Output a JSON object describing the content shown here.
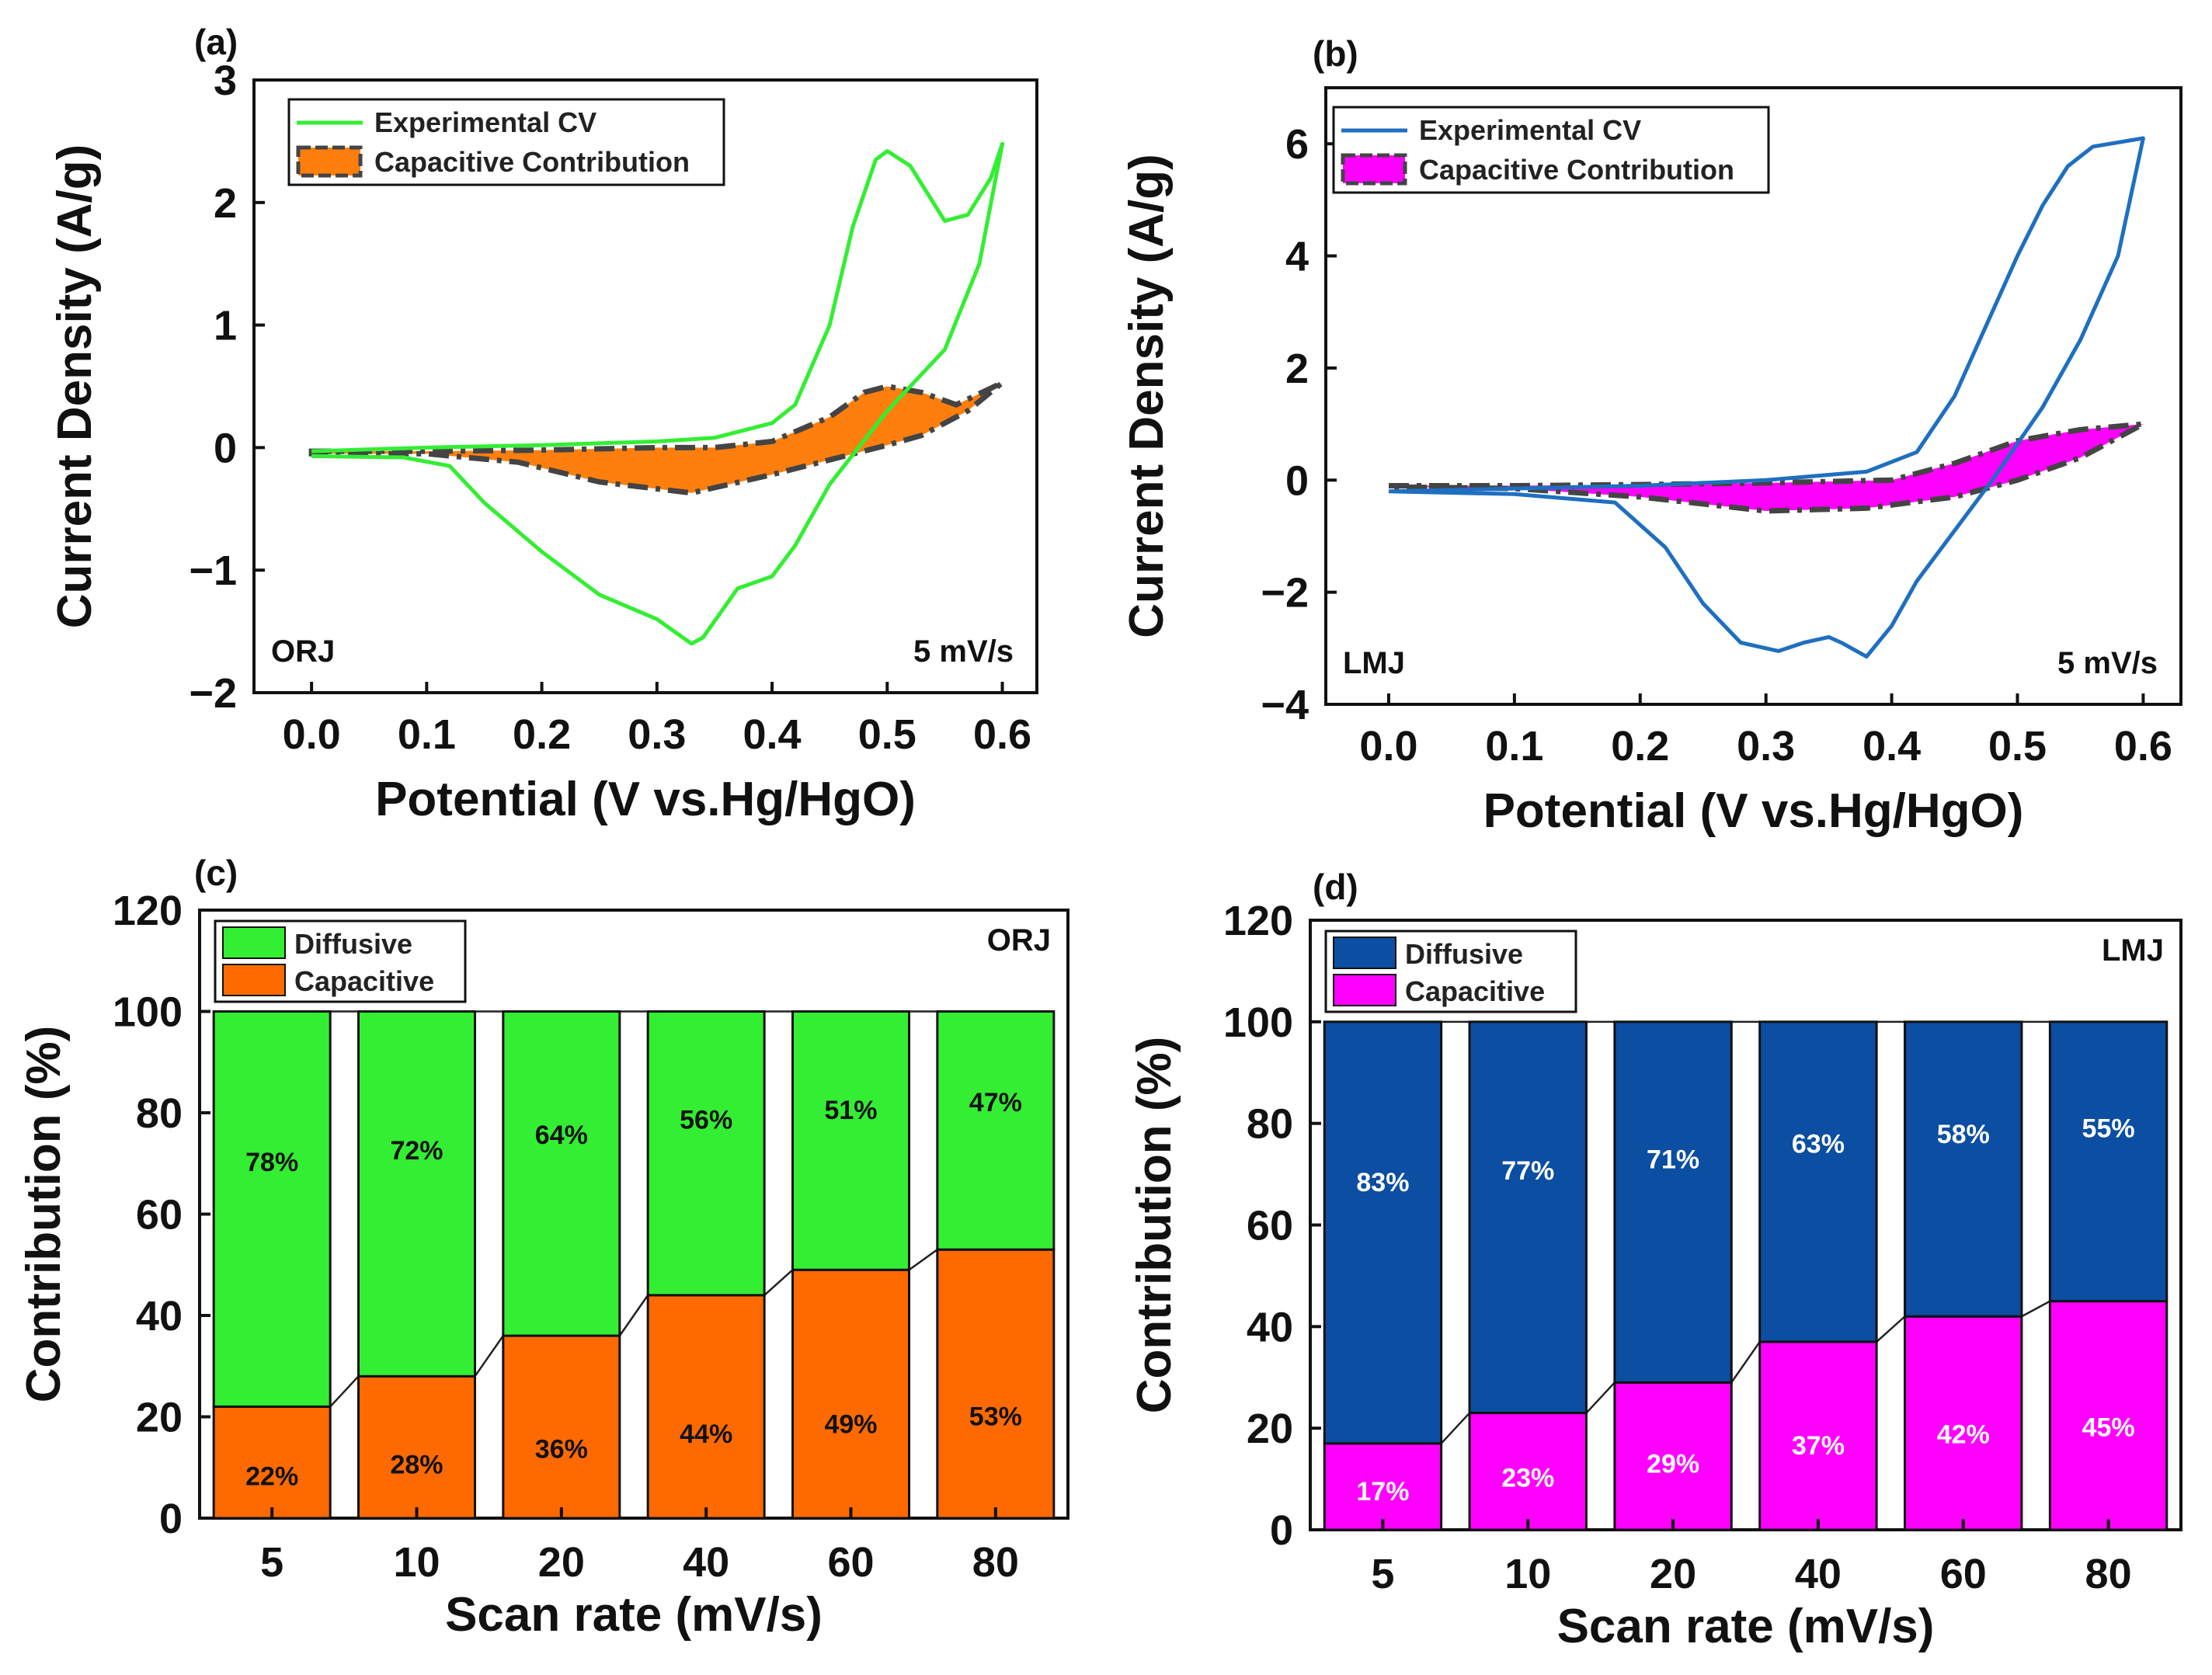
{
  "chart_data": [
    {
      "type": "line",
      "panel": "(a)",
      "sample": "ORJ",
      "annotation": "5 mV/s",
      "xlabel": "Potential (V vs.Hg/HgO)",
      "ylabel": "Current Density (A/g)",
      "xlim": [
        -0.05,
        0.63
      ],
      "ylim": [
        -2,
        3
      ],
      "xticks": [
        0.0,
        0.1,
        0.2,
        0.3,
        0.4,
        0.5,
        0.6
      ],
      "xtick_labels": [
        "0.0",
        "0.1",
        "0.2",
        "0.3",
        "0.4",
        "0.5",
        "0.6"
      ],
      "yticks": [
        -2,
        -1,
        0,
        1,
        2,
        3
      ],
      "ytick_labels": [
        "−2",
        "−1",
        "0",
        "1",
        "2",
        "3"
      ],
      "legend": [
        "Experimental CV",
        "Capacitive Contribution"
      ],
      "colors": {
        "cv": "#33ee33",
        "fill": "#ff7f0e",
        "outline": "#444444"
      },
      "series": [
        {
          "name": "Experimental CV",
          "anodic": [
            [
              0.0,
              -0.03
            ],
            [
              0.1,
              0.0
            ],
            [
              0.2,
              0.02
            ],
            [
              0.3,
              0.05
            ],
            [
              0.35,
              0.08
            ],
            [
              0.4,
              0.2
            ],
            [
              0.42,
              0.35
            ],
            [
              0.45,
              1.0
            ],
            [
              0.47,
              1.8
            ],
            [
              0.49,
              2.35
            ],
            [
              0.5,
              2.42
            ],
            [
              0.52,
              2.3
            ],
            [
              0.55,
              1.85
            ],
            [
              0.57,
              1.9
            ],
            [
              0.59,
              2.2
            ],
            [
              0.6,
              2.48
            ]
          ],
          "cathodic": [
            [
              0.6,
              2.48
            ],
            [
              0.58,
              1.5
            ],
            [
              0.55,
              0.8
            ],
            [
              0.5,
              0.3
            ],
            [
              0.45,
              -0.3
            ],
            [
              0.42,
              -0.8
            ],
            [
              0.4,
              -1.05
            ],
            [
              0.37,
              -1.15
            ],
            [
              0.34,
              -1.55
            ],
            [
              0.33,
              -1.6
            ],
            [
              0.3,
              -1.4
            ],
            [
              0.25,
              -1.2
            ],
            [
              0.2,
              -0.85
            ],
            [
              0.15,
              -0.45
            ],
            [
              0.12,
              -0.15
            ],
            [
              0.08,
              -0.08
            ],
            [
              0.0,
              -0.07
            ]
          ]
        },
        {
          "name": "Capacitive Contribution",
          "upper": [
            [
              0.0,
              -0.03
            ],
            [
              0.1,
              -0.03
            ],
            [
              0.2,
              -0.02
            ],
            [
              0.3,
              0.0
            ],
            [
              0.35,
              0.0
            ],
            [
              0.4,
              0.05
            ],
            [
              0.45,
              0.25
            ],
            [
              0.48,
              0.45
            ],
            [
              0.5,
              0.5
            ],
            [
              0.53,
              0.45
            ],
            [
              0.56,
              0.35
            ],
            [
              0.6,
              0.53
            ]
          ],
          "lower": [
            [
              0.6,
              0.53
            ],
            [
              0.57,
              0.3
            ],
            [
              0.53,
              0.1
            ],
            [
              0.5,
              0.02
            ],
            [
              0.45,
              -0.1
            ],
            [
              0.4,
              -0.22
            ],
            [
              0.33,
              -0.37
            ],
            [
              0.25,
              -0.28
            ],
            [
              0.18,
              -0.12
            ],
            [
              0.1,
              -0.05
            ],
            [
              0.0,
              -0.05
            ]
          ]
        }
      ]
    },
    {
      "type": "line",
      "panel": "(b)",
      "sample": "LMJ",
      "annotation": "5 mV/s",
      "xlabel": "Potential (V vs.Hg/HgO)",
      "ylabel": "Current Density (A/g)",
      "xlim": [
        -0.05,
        0.63
      ],
      "ylim": [
        -4,
        7
      ],
      "xticks": [
        0.0,
        0.1,
        0.2,
        0.3,
        0.4,
        0.5,
        0.6
      ],
      "xtick_labels": [
        "0.0",
        "0.1",
        "0.2",
        "0.3",
        "0.4",
        "0.5",
        "0.6"
      ],
      "yticks": [
        -4,
        -2,
        0,
        2,
        4,
        6
      ],
      "ytick_labels": [
        "−4",
        "−2",
        "0",
        "2",
        "4",
        "6"
      ],
      "legend": [
        "Experimental CV",
        "Capacitive Contribution"
      ],
      "colors": {
        "cv": "#1f6fc0",
        "fill": "#ff00ff",
        "outline": "#444444"
      },
      "series": [
        {
          "name": "Experimental CV",
          "anodic": [
            [
              0.0,
              -0.2
            ],
            [
              0.1,
              -0.15
            ],
            [
              0.2,
              -0.1
            ],
            [
              0.3,
              0.0
            ],
            [
              0.38,
              0.15
            ],
            [
              0.42,
              0.5
            ],
            [
              0.45,
              1.5
            ],
            [
              0.48,
              3.0
            ],
            [
              0.5,
              4.0
            ],
            [
              0.52,
              4.9
            ],
            [
              0.54,
              5.6
            ],
            [
              0.56,
              5.95
            ],
            [
              0.6,
              6.1
            ]
          ],
          "cathodic": [
            [
              0.6,
              6.1
            ],
            [
              0.58,
              4.0
            ],
            [
              0.55,
              2.5
            ],
            [
              0.52,
              1.3
            ],
            [
              0.48,
              0.0
            ],
            [
              0.45,
              -0.9
            ],
            [
              0.42,
              -1.8
            ],
            [
              0.4,
              -2.6
            ],
            [
              0.38,
              -3.15
            ],
            [
              0.36,
              -2.9
            ],
            [
              0.35,
              -2.8
            ],
            [
              0.33,
              -2.9
            ],
            [
              0.31,
              -3.05
            ],
            [
              0.28,
              -2.9
            ],
            [
              0.25,
              -2.2
            ],
            [
              0.22,
              -1.2
            ],
            [
              0.18,
              -0.4
            ],
            [
              0.1,
              -0.25
            ],
            [
              0.0,
              -0.2
            ]
          ]
        },
        {
          "name": "Capacitive Contribution",
          "upper": [
            [
              0.0,
              -0.1
            ],
            [
              0.1,
              -0.1
            ],
            [
              0.2,
              -0.08
            ],
            [
              0.3,
              -0.05
            ],
            [
              0.4,
              0.0
            ],
            [
              0.45,
              0.3
            ],
            [
              0.5,
              0.7
            ],
            [
              0.55,
              0.9
            ],
            [
              0.6,
              1.0
            ]
          ],
          "lower": [
            [
              0.6,
              1.0
            ],
            [
              0.55,
              0.4
            ],
            [
              0.5,
              0.0
            ],
            [
              0.45,
              -0.3
            ],
            [
              0.38,
              -0.5
            ],
            [
              0.3,
              -0.55
            ],
            [
              0.2,
              -0.3
            ],
            [
              0.1,
              -0.15
            ],
            [
              0.0,
              -0.12
            ]
          ]
        }
      ]
    },
    {
      "type": "bar",
      "stacked": true,
      "panel": "(c)",
      "sample": "ORJ",
      "xlabel": "Scan rate (mV/s)",
      "ylabel": "Contribution (%)",
      "ylim": [
        0,
        120
      ],
      "yticks": [
        0,
        20,
        40,
        60,
        80,
        100,
        120
      ],
      "ytick_labels": [
        "0",
        "20",
        "40",
        "60",
        "80",
        "100",
        "120"
      ],
      "categories": [
        "5",
        "10",
        "20",
        "40",
        "60",
        "80"
      ],
      "legend": [
        "Diffusive",
        "Capacitive"
      ],
      "series": [
        {
          "name": "Capacitive",
          "color": "#ff6a00",
          "label_color": "#111111",
          "values": [
            22,
            28,
            36,
            44,
            49,
            53
          ],
          "labels": [
            "22%",
            "28%",
            "36%",
            "44%",
            "49%",
            "53%"
          ]
        },
        {
          "name": "Diffusive",
          "color": "#33ee33",
          "label_color": "#111111",
          "values": [
            78,
            72,
            64,
            56,
            51,
            47
          ],
          "labels": [
            "78%",
            "72%",
            "64%",
            "56%",
            "51%",
            "47%"
          ]
        }
      ]
    },
    {
      "type": "bar",
      "stacked": true,
      "panel": "(d)",
      "sample": "LMJ",
      "xlabel": "Scan rate (mV/s)",
      "ylabel": "Contribution (%)",
      "ylim": [
        0,
        120
      ],
      "yticks": [
        0,
        20,
        40,
        60,
        80,
        100,
        120
      ],
      "ytick_labels": [
        "0",
        "20",
        "40",
        "60",
        "80",
        "100",
        "120"
      ],
      "categories": [
        "5",
        "10",
        "20",
        "40",
        "60",
        "80"
      ],
      "legend": [
        "Diffusive",
        "Capacitive"
      ],
      "series": [
        {
          "name": "Capacitive",
          "color": "#ff00ff",
          "label_color": "#ffffff",
          "values": [
            17,
            23,
            29,
            37,
            42,
            45
          ],
          "labels": [
            "17%",
            "23%",
            "29%",
            "37%",
            "42%",
            "45%"
          ]
        },
        {
          "name": "Diffusive",
          "color": "#0b4ea2",
          "label_color": "#ffffff",
          "values": [
            83,
            77,
            71,
            63,
            58,
            55
          ],
          "labels": [
            "83%",
            "77%",
            "71%",
            "63%",
            "58%",
            "55%"
          ]
        }
      ]
    }
  ]
}
